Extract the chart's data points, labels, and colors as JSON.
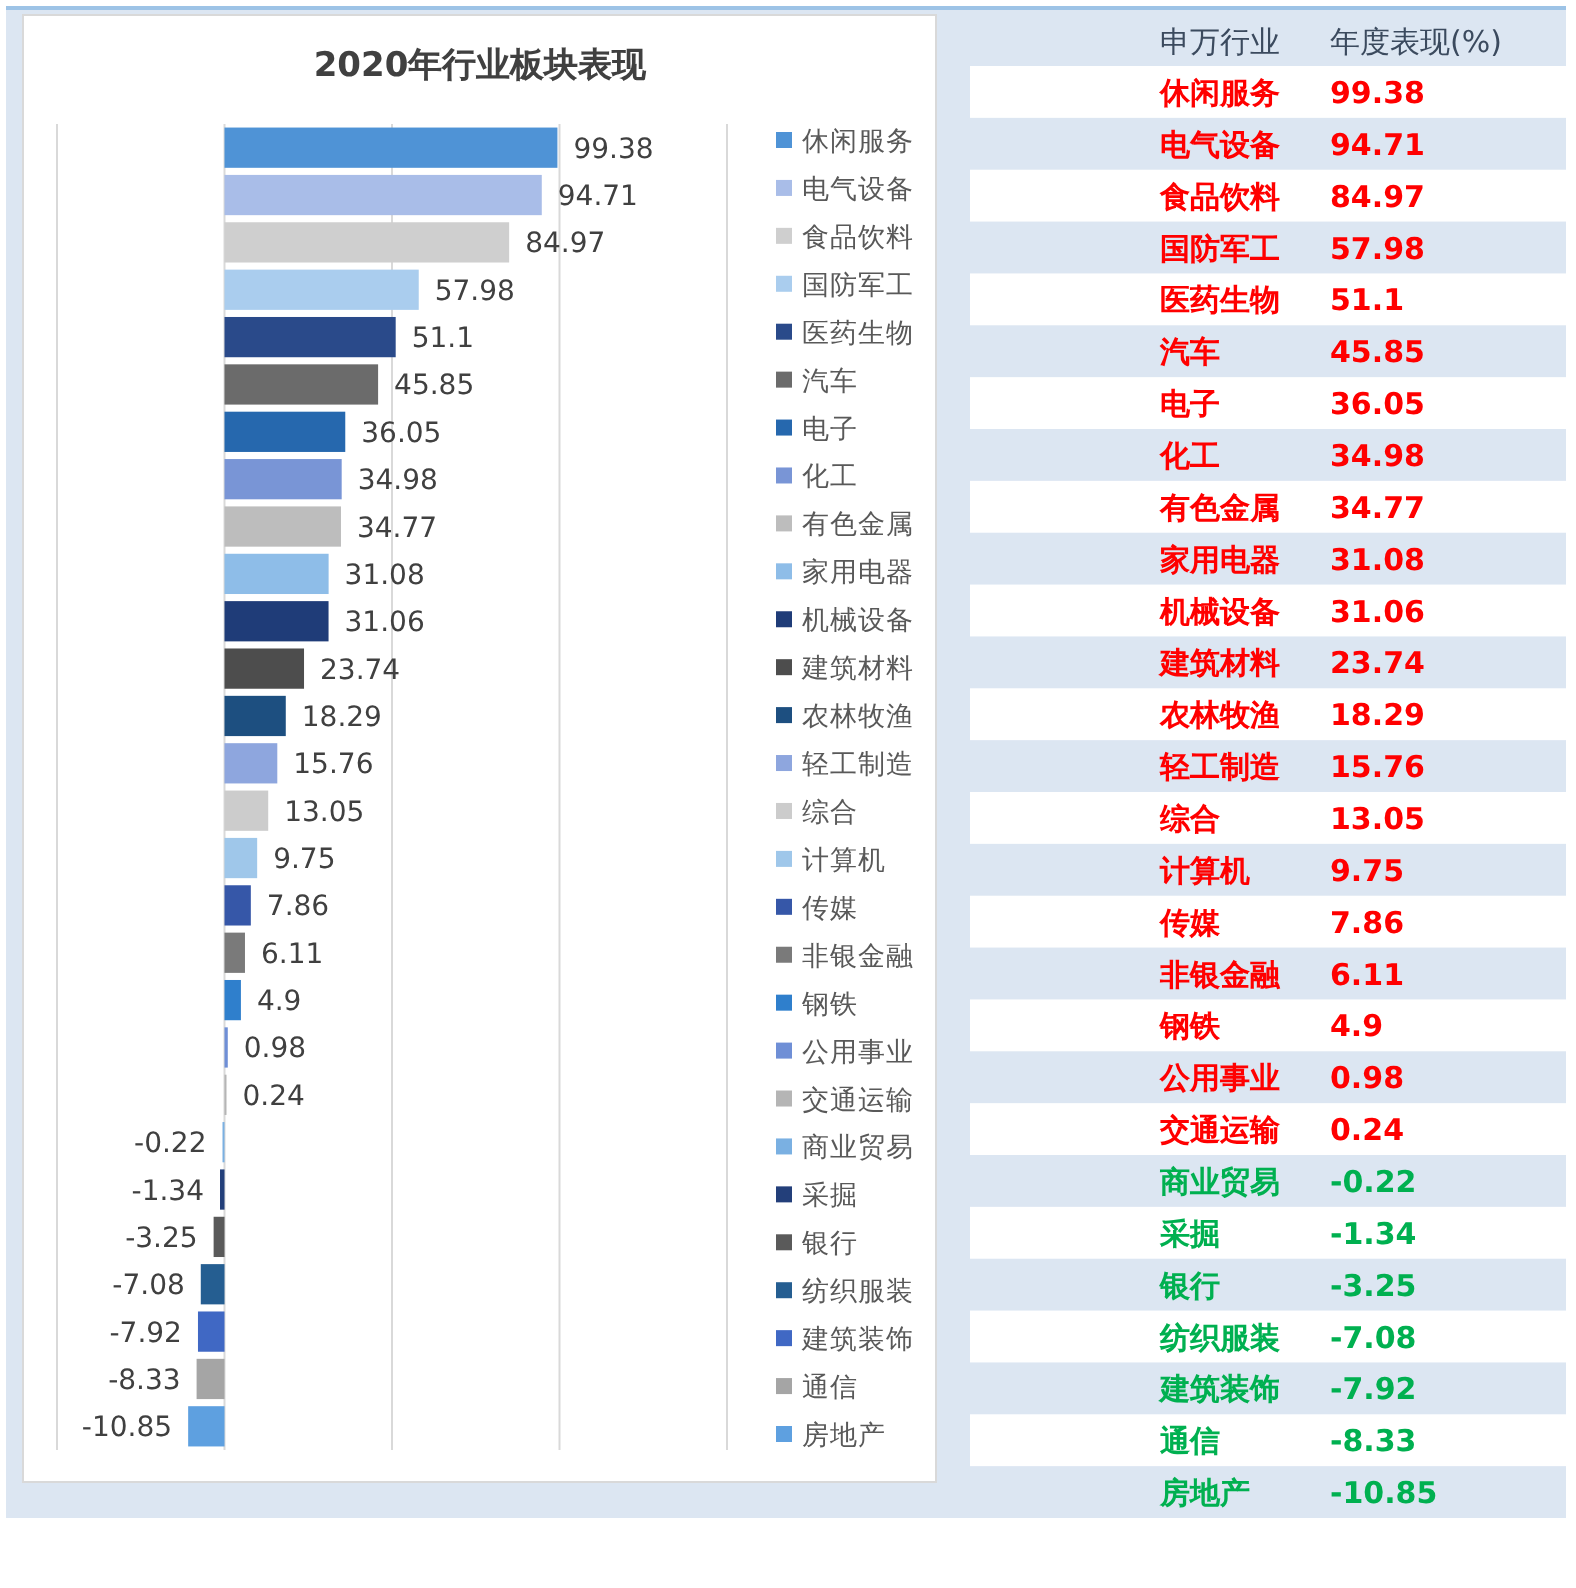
{
  "chart_data": [
    {
      "type": "bar",
      "orientation": "horizontal",
      "stacked": true,
      "title": "2020年行业板块表现",
      "categories": [
        null,
        null,
        null,
        null,
        null,
        null,
        null,
        null,
        null,
        null,
        null,
        null,
        null,
        null,
        null,
        null,
        null,
        null,
        null,
        null,
        null,
        null,
        null,
        null,
        null,
        null,
        null,
        null
      ],
      "series": [
        {
          "name": "休闲服务",
          "color": "#4f93d6",
          "values": [
            99.38,
            null,
            null,
            null,
            null,
            null,
            null,
            null,
            null,
            null,
            null,
            null,
            null,
            null,
            null,
            null,
            null,
            null,
            null,
            null,
            null,
            null,
            null,
            null,
            null,
            null,
            null,
            null
          ]
        },
        {
          "name": "电气设备",
          "color": "#a9bde8",
          "values": [
            null,
            94.71,
            null,
            null,
            null,
            null,
            null,
            null,
            null,
            null,
            null,
            null,
            null,
            null,
            null,
            null,
            null,
            null,
            null,
            null,
            null,
            null,
            null,
            null,
            null,
            null,
            null,
            null
          ]
        },
        {
          "name": "食品饮料",
          "color": "#cfcfcf",
          "values": [
            null,
            null,
            84.97,
            null,
            null,
            null,
            null,
            null,
            null,
            null,
            null,
            null,
            null,
            null,
            null,
            null,
            null,
            null,
            null,
            null,
            null,
            null,
            null,
            null,
            null,
            null,
            null,
            null
          ]
        },
        {
          "name": "国防军工",
          "color": "#aacdee",
          "values": [
            null,
            null,
            null,
            57.98,
            null,
            null,
            null,
            null,
            null,
            null,
            null,
            null,
            null,
            null,
            null,
            null,
            null,
            null,
            null,
            null,
            null,
            null,
            null,
            null,
            null,
            null,
            null,
            null
          ]
        },
        {
          "name": "医药生物",
          "color": "#2a4a8a",
          "values": [
            null,
            null,
            null,
            null,
            51.1,
            null,
            null,
            null,
            null,
            null,
            null,
            null,
            null,
            null,
            null,
            null,
            null,
            null,
            null,
            null,
            null,
            null,
            null,
            null,
            null,
            null,
            null,
            null
          ]
        },
        {
          "name": "汽车",
          "color": "#6b6b6b",
          "values": [
            null,
            null,
            null,
            null,
            null,
            45.85,
            null,
            null,
            null,
            null,
            null,
            null,
            null,
            null,
            null,
            null,
            null,
            null,
            null,
            null,
            null,
            null,
            null,
            null,
            null,
            null,
            null,
            null
          ]
        },
        {
          "name": "电子",
          "color": "#2668ae",
          "values": [
            null,
            null,
            null,
            null,
            null,
            null,
            36.05,
            null,
            null,
            null,
            null,
            null,
            null,
            null,
            null,
            null,
            null,
            null,
            null,
            null,
            null,
            null,
            null,
            null,
            null,
            null,
            null,
            null
          ]
        },
        {
          "name": "化工",
          "color": "#7995d6",
          "values": [
            null,
            null,
            null,
            null,
            null,
            null,
            null,
            34.98,
            null,
            null,
            null,
            null,
            null,
            null,
            null,
            null,
            null,
            null,
            null,
            null,
            null,
            null,
            null,
            null,
            null,
            null,
            null,
            null
          ]
        },
        {
          "name": "有色金属",
          "color": "#bdbdbd",
          "values": [
            null,
            null,
            null,
            null,
            null,
            null,
            null,
            null,
            34.77,
            null,
            null,
            null,
            null,
            null,
            null,
            null,
            null,
            null,
            null,
            null,
            null,
            null,
            null,
            null,
            null,
            null,
            null,
            null
          ]
        },
        {
          "name": "家用电器",
          "color": "#8ebde8",
          "values": [
            null,
            null,
            null,
            null,
            null,
            null,
            null,
            null,
            null,
            31.08,
            null,
            null,
            null,
            null,
            null,
            null,
            null,
            null,
            null,
            null,
            null,
            null,
            null,
            null,
            null,
            null,
            null,
            null
          ]
        },
        {
          "name": "机械设备",
          "color": "#1f3c78",
          "values": [
            null,
            null,
            null,
            null,
            null,
            null,
            null,
            null,
            null,
            null,
            31.06,
            null,
            null,
            null,
            null,
            null,
            null,
            null,
            null,
            null,
            null,
            null,
            null,
            null,
            null,
            null,
            null,
            null
          ]
        },
        {
          "name": "建筑材料",
          "color": "#4d4d4d",
          "values": [
            null,
            null,
            null,
            null,
            null,
            null,
            null,
            null,
            null,
            null,
            null,
            23.74,
            null,
            null,
            null,
            null,
            null,
            null,
            null,
            null,
            null,
            null,
            null,
            null,
            null,
            null,
            null,
            null
          ]
        },
        {
          "name": "农林牧渔",
          "color": "#1d4f80",
          "values": [
            null,
            null,
            null,
            null,
            null,
            null,
            null,
            null,
            null,
            null,
            null,
            null,
            18.29,
            null,
            null,
            null,
            null,
            null,
            null,
            null,
            null,
            null,
            null,
            null,
            null,
            null,
            null,
            null
          ]
        },
        {
          "name": "轻工制造",
          "color": "#8ea6de",
          "values": [
            null,
            null,
            null,
            null,
            null,
            null,
            null,
            null,
            null,
            null,
            null,
            null,
            null,
            15.76,
            null,
            null,
            null,
            null,
            null,
            null,
            null,
            null,
            null,
            null,
            null,
            null,
            null,
            null
          ]
        },
        {
          "name": "综合",
          "color": "#cccccc",
          "values": [
            null,
            null,
            null,
            null,
            null,
            null,
            null,
            null,
            null,
            null,
            null,
            null,
            null,
            null,
            13.05,
            null,
            null,
            null,
            null,
            null,
            null,
            null,
            null,
            null,
            null,
            null,
            null,
            null
          ]
        },
        {
          "name": "计算机",
          "color": "#9fc7ea",
          "values": [
            null,
            null,
            null,
            null,
            null,
            null,
            null,
            null,
            null,
            null,
            null,
            null,
            null,
            null,
            null,
            9.75,
            null,
            null,
            null,
            null,
            null,
            null,
            null,
            null,
            null,
            null,
            null,
            null
          ]
        },
        {
          "name": "传媒",
          "color": "#3657a8",
          "values": [
            null,
            null,
            null,
            null,
            null,
            null,
            null,
            null,
            null,
            null,
            null,
            null,
            null,
            null,
            null,
            null,
            7.86,
            null,
            null,
            null,
            null,
            null,
            null,
            null,
            null,
            null,
            null,
            null
          ]
        },
        {
          "name": "非银金融",
          "color": "#7a7a7a",
          "values": [
            null,
            null,
            null,
            null,
            null,
            null,
            null,
            null,
            null,
            null,
            null,
            null,
            null,
            null,
            null,
            null,
            null,
            6.11,
            null,
            null,
            null,
            null,
            null,
            null,
            null,
            null,
            null,
            null
          ]
        },
        {
          "name": "钢铁",
          "color": "#2f7fcc",
          "values": [
            null,
            null,
            null,
            null,
            null,
            null,
            null,
            null,
            null,
            null,
            null,
            null,
            null,
            null,
            null,
            null,
            null,
            null,
            4.9,
            null,
            null,
            null,
            null,
            null,
            null,
            null,
            null,
            null
          ]
        },
        {
          "name": "公用事业",
          "color": "#6f8fd6",
          "values": [
            null,
            null,
            null,
            null,
            null,
            null,
            null,
            null,
            null,
            null,
            null,
            null,
            null,
            null,
            null,
            null,
            null,
            null,
            null,
            0.98,
            null,
            null,
            null,
            null,
            null,
            null,
            null,
            null
          ]
        },
        {
          "name": "交通运输",
          "color": "#b5b5b5",
          "values": [
            null,
            null,
            null,
            null,
            null,
            null,
            null,
            null,
            null,
            null,
            null,
            null,
            null,
            null,
            null,
            null,
            null,
            null,
            null,
            null,
            0.24,
            null,
            null,
            null,
            null,
            null,
            null,
            null
          ]
        },
        {
          "name": "商业贸易",
          "color": "#7ab0e2",
          "values": [
            null,
            null,
            null,
            null,
            null,
            null,
            null,
            null,
            null,
            null,
            null,
            null,
            null,
            null,
            null,
            null,
            null,
            null,
            null,
            null,
            null,
            -0.22,
            null,
            null,
            null,
            null,
            null,
            null
          ]
        },
        {
          "name": "采掘",
          "color": "#233f7a",
          "values": [
            null,
            null,
            null,
            null,
            null,
            null,
            null,
            null,
            null,
            null,
            null,
            null,
            null,
            null,
            null,
            null,
            null,
            null,
            null,
            null,
            null,
            null,
            -1.34,
            null,
            null,
            null,
            null,
            null
          ]
        },
        {
          "name": "银行",
          "color": "#5a5a5a",
          "values": [
            null,
            null,
            null,
            null,
            null,
            null,
            null,
            null,
            null,
            null,
            null,
            null,
            null,
            null,
            null,
            null,
            null,
            null,
            null,
            null,
            null,
            null,
            null,
            -3.25,
            null,
            null,
            null,
            null
          ]
        },
        {
          "name": "纺织服装",
          "color": "#255e91",
          "values": [
            null,
            null,
            null,
            null,
            null,
            null,
            null,
            null,
            null,
            null,
            null,
            null,
            null,
            null,
            null,
            null,
            null,
            null,
            null,
            null,
            null,
            null,
            null,
            null,
            -7.08,
            null,
            null,
            null
          ]
        },
        {
          "name": "建筑装饰",
          "color": "#4068c4",
          "values": [
            null,
            null,
            null,
            null,
            null,
            null,
            null,
            null,
            null,
            null,
            null,
            null,
            null,
            null,
            null,
            null,
            null,
            null,
            null,
            null,
            null,
            null,
            null,
            null,
            null,
            -7.92,
            null,
            null
          ]
        },
        {
          "name": "通信",
          "color": "#a5a5a5",
          "values": [
            null,
            null,
            null,
            null,
            null,
            null,
            null,
            null,
            null,
            null,
            null,
            null,
            null,
            null,
            null,
            null,
            null,
            null,
            null,
            null,
            null,
            null,
            null,
            null,
            null,
            null,
            -8.33,
            null
          ]
        },
        {
          "name": "房地产",
          "color": "#5ea0e0",
          "values": [
            null,
            null,
            null,
            null,
            null,
            null,
            null,
            null,
            null,
            null,
            null,
            null,
            null,
            null,
            null,
            null,
            null,
            null,
            null,
            null,
            null,
            null,
            null,
            null,
            null,
            null,
            null,
            -10.85
          ]
        }
      ],
      "xlim": [
        -50,
        150
      ],
      "xticks": [
        {
          "value": -50,
          "label": null
        },
        {
          "value": 0,
          "label": null
        },
        {
          "value": 50,
          "label": null
        },
        {
          "value": 100,
          "label": null
        },
        {
          "value": 150,
          "label": null
        }
      ],
      "grid": "x",
      "legend": "right",
      "data_labels": true
    },
    {
      "type": "other",
      "annotations": [
        "申万行业",
        "年度表现(%)"
      ],
      "categories": [
        "休闲服务",
        "电气设备",
        "食品饮料",
        "国防军工",
        "医药生物",
        "汽车",
        "电子",
        "化工",
        "有色金属",
        "家用电器",
        "机械设备",
        "建筑材料",
        "农林牧渔",
        "轻工制造",
        "综合",
        "计算机",
        "传媒",
        "非银金融",
        "钢铁",
        "公用事业",
        "交通运输",
        "商业贸易",
        "采掘",
        "银行",
        "纺织服装",
        "建筑装饰",
        "通信",
        "房地产"
      ],
      "values": [
        99.38,
        94.71,
        84.97,
        57.98,
        51.1,
        45.85,
        36.05,
        34.98,
        34.77,
        31.08,
        31.06,
        23.74,
        18.29,
        15.76,
        13.05,
        9.75,
        7.86,
        6.11,
        4.9,
        0.98,
        0.24,
        -0.22,
        -1.34,
        -3.25,
        -7.08,
        -7.92,
        -8.33,
        -10.85
      ],
      "data_labels": true
    }
  ]
}
